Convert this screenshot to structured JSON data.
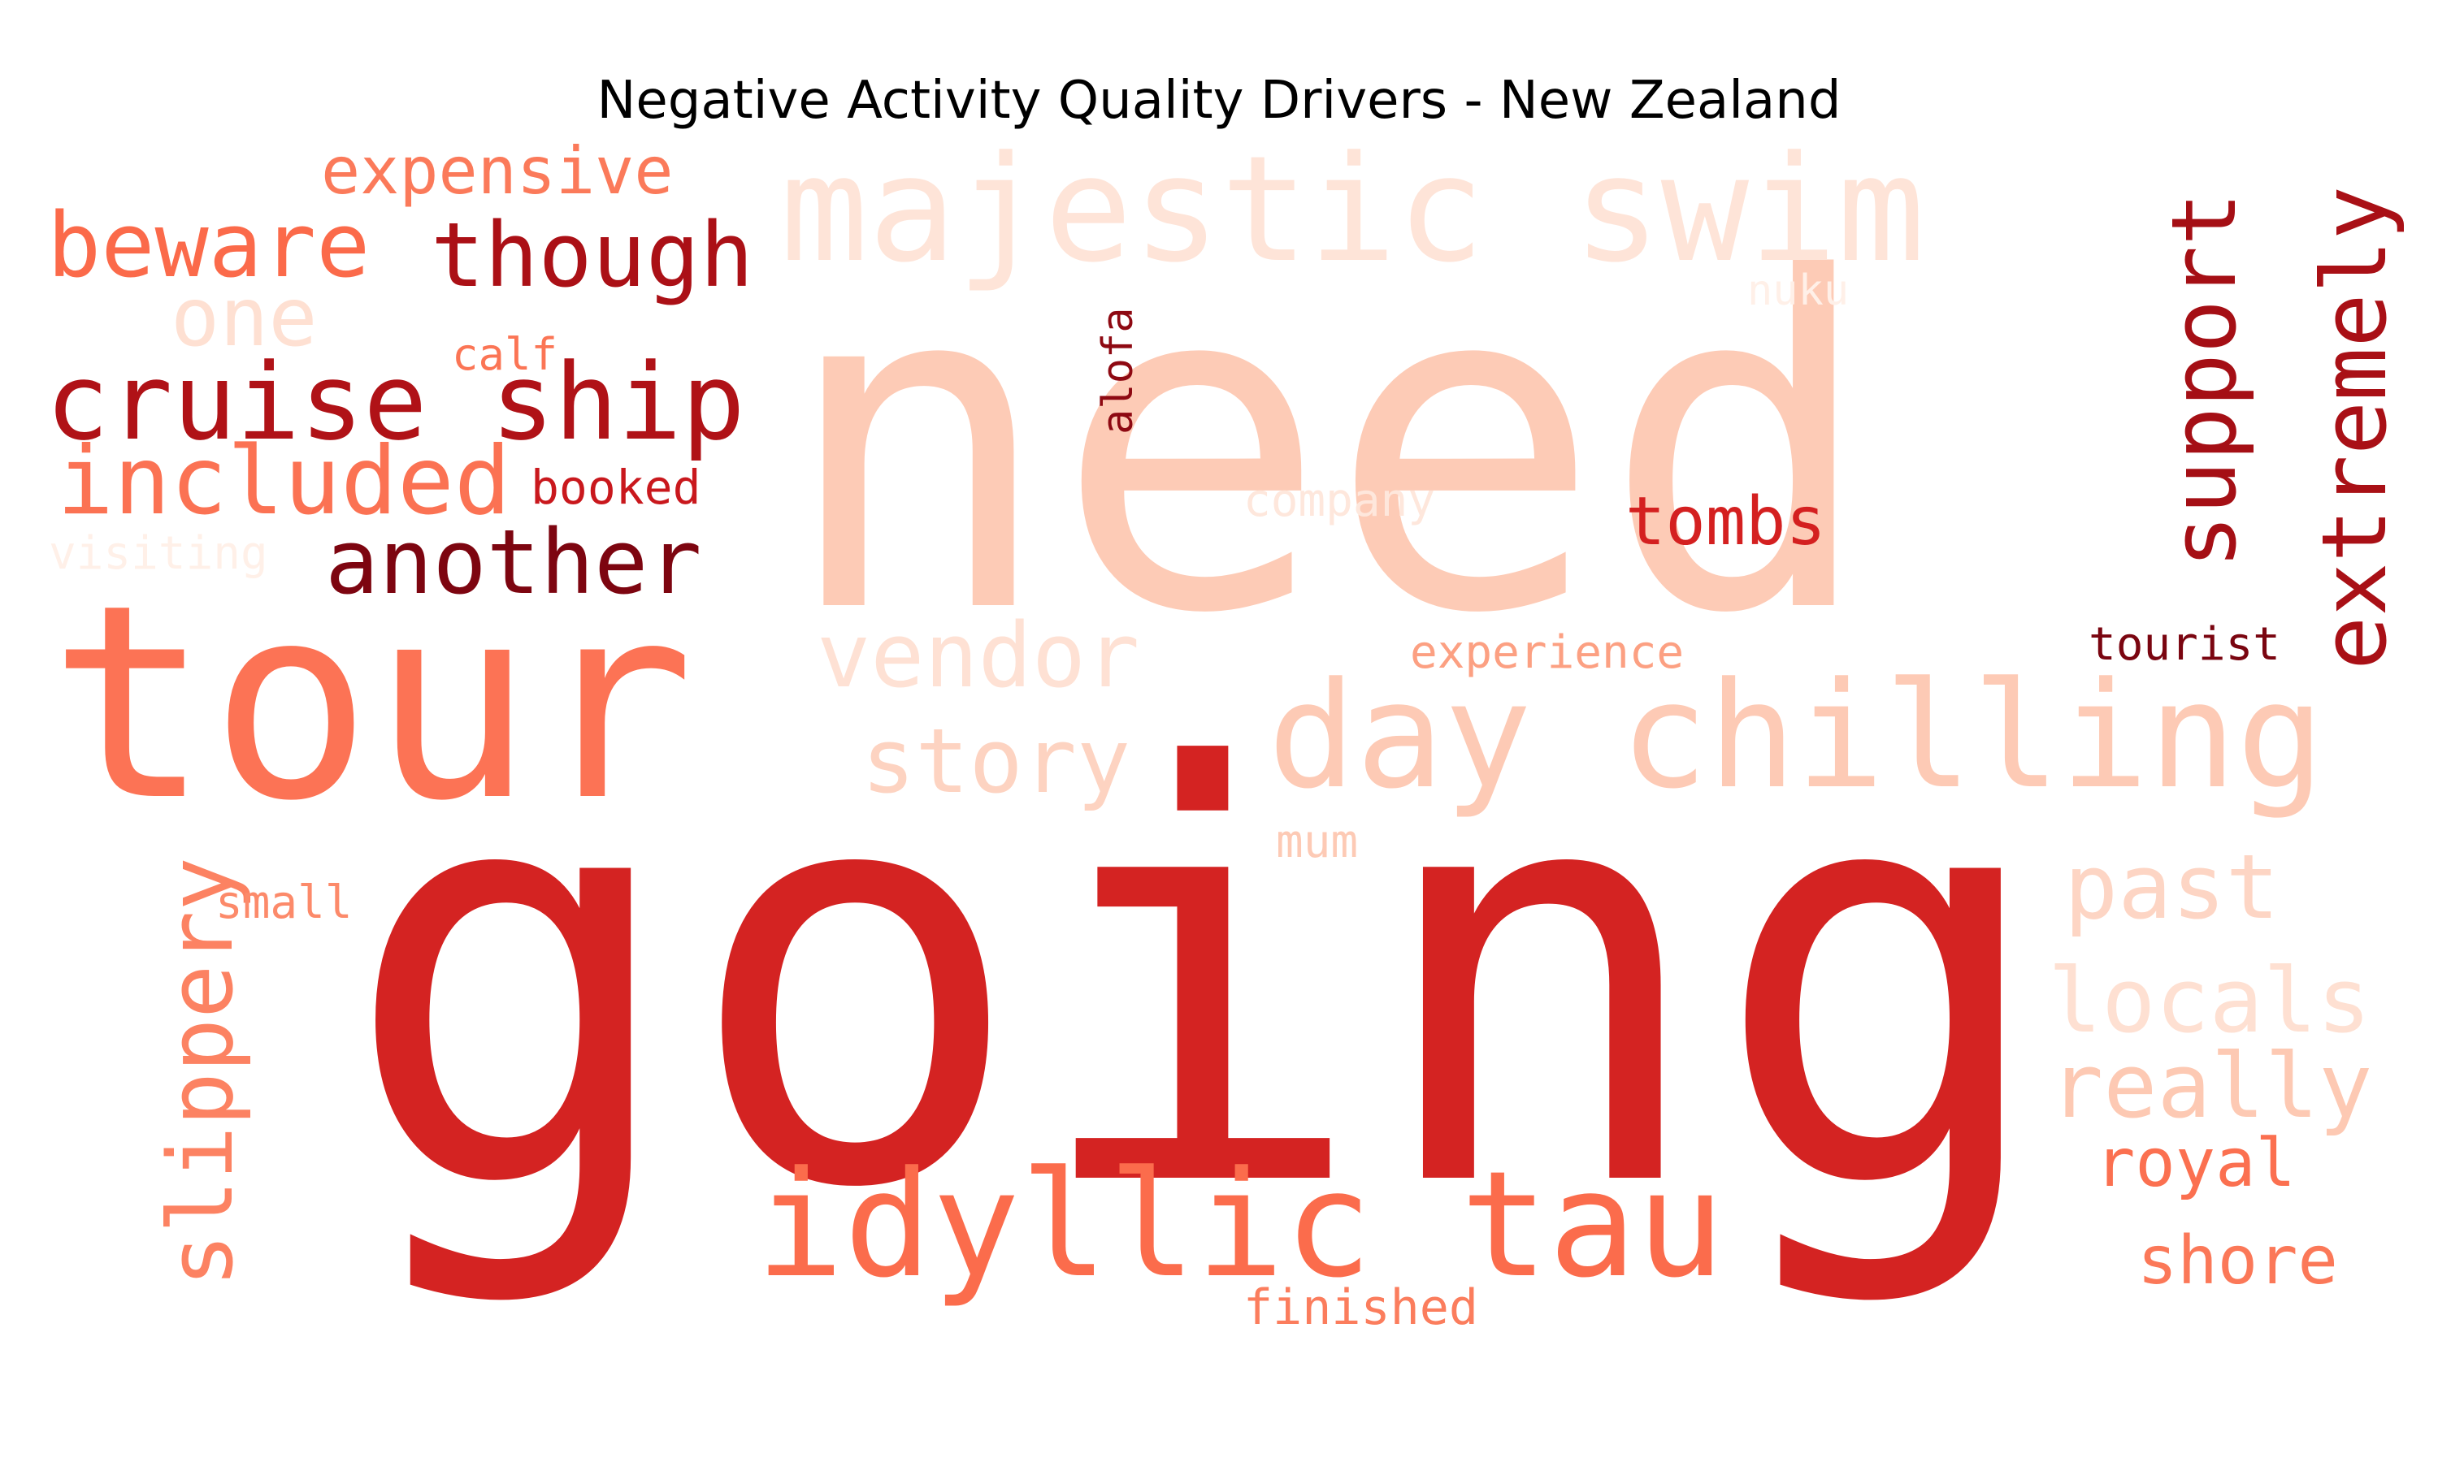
{
  "title": "Negative Activity Quality Drivers - New Zealand",
  "words": [
    {
      "text": "going",
      "color": "#d42322"
    },
    {
      "text": "need",
      "color": "#fdcbb6"
    },
    {
      "text": "tour",
      "color": "#fc7355"
    },
    {
      "text": "majestic swim",
      "color": "#fee4d8"
    },
    {
      "text": "day chilling",
      "color": "#fdcab5"
    },
    {
      "text": "idyllic tau",
      "color": "#fb6c4c"
    },
    {
      "text": "cruise ship",
      "color": "#b01217"
    },
    {
      "text": "though",
      "color": "#ab1016"
    },
    {
      "text": "included",
      "color": "#fb7253"
    },
    {
      "text": "another",
      "color": "#7d0510"
    },
    {
      "text": "beware",
      "color": "#fb6a4a"
    },
    {
      "text": "expensive",
      "color": "#fb7a5a"
    },
    {
      "text": "one",
      "color": "#fee0d2"
    },
    {
      "text": "calf",
      "color": "#fb7555"
    },
    {
      "text": "booked",
      "color": "#c9181d"
    },
    {
      "text": "visiting",
      "color": "#fff0e8"
    },
    {
      "text": "vendor",
      "color": "#fee1d4"
    },
    {
      "text": "story",
      "color": "#fdd3c1"
    },
    {
      "text": "alofa",
      "color": "#8e0912"
    },
    {
      "text": "nuku",
      "color": "#fff0e8"
    },
    {
      "text": "company",
      "color": "#fee7dc"
    },
    {
      "text": "tombs",
      "color": "#d42020"
    },
    {
      "text": "support",
      "color": "#a50f15"
    },
    {
      "text": "extremely",
      "color": "#a91016"
    },
    {
      "text": "experience",
      "color": "#fca082"
    },
    {
      "text": "tourist",
      "color": "#7a0510"
    },
    {
      "text": "slippery",
      "color": "#fc8262"
    },
    {
      "text": "small",
      "color": "#fc8a6a"
    },
    {
      "text": "mum",
      "color": "#fdcab5"
    },
    {
      "text": "past",
      "color": "#fdd5c4"
    },
    {
      "text": "locals",
      "color": "#fee0d2"
    },
    {
      "text": "really",
      "color": "#fdc9b3"
    },
    {
      "text": "royal",
      "color": "#fb7050"
    },
    {
      "text": "shore",
      "color": "#fb7858"
    },
    {
      "text": "finished",
      "color": "#fb7d5d"
    }
  ]
}
